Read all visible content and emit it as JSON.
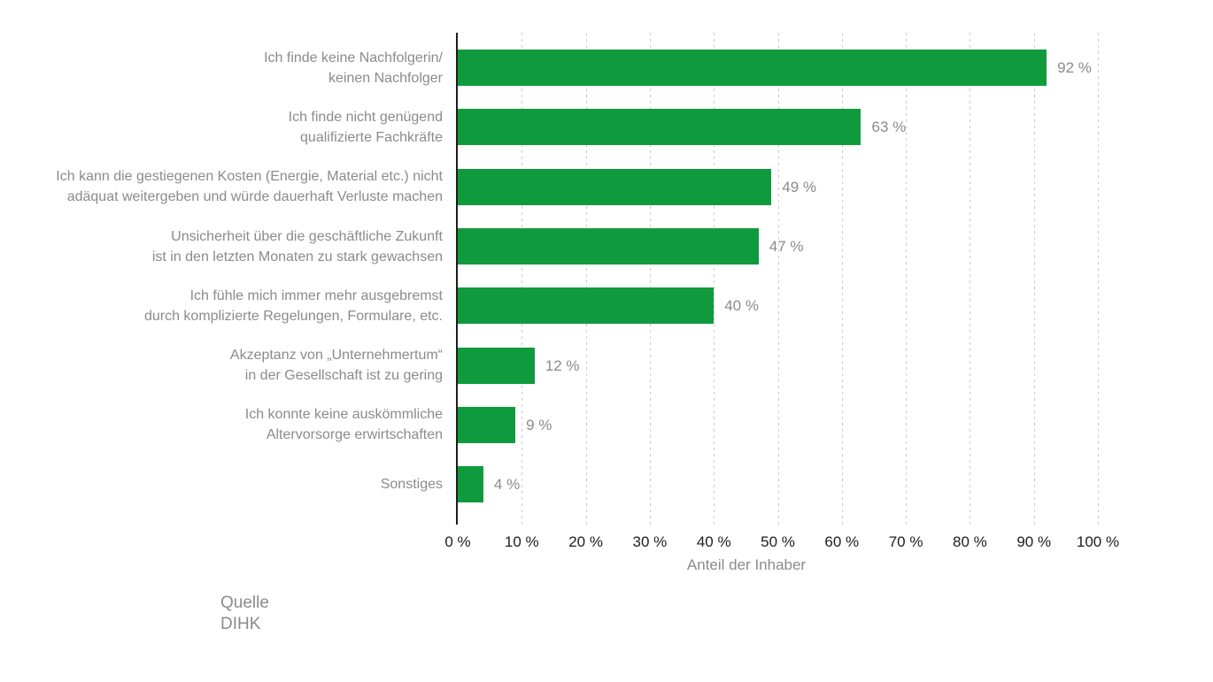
{
  "chart_data": {
    "type": "bar",
    "orientation": "horizontal",
    "categories": [
      "Ich finde keine Nachfolgerin/\nkeinen Nachfolger",
      "Ich finde nicht genügend\nqualifizierte Fachkräfte",
      "Ich kann die gestiegenen Kosten (Energie, Material etc.) nicht\nadäquat weitergeben und würde dauerhaft Verluste machen",
      "Unsicherheit über die geschäftliche Zukunft\nist in den letzten Monaten zu stark gewachsen",
      "Ich fühle mich immer mehr ausgebremst\ndurch komplizierte Regelungen, Formulare, etc.",
      "Akzeptanz von „Unternehmertum“\nin der Gesellschaft ist zu gering",
      "Ich konnte keine auskömmliche\nAltervorsorge erwirtschaften",
      "Sonstiges"
    ],
    "values": [
      92,
      63,
      49,
      47,
      40,
      12,
      9,
      4
    ],
    "value_labels": [
      "92 %",
      "63 %",
      "49 %",
      "47 %",
      "40 %",
      "12 %",
      "9 %",
      "4 %"
    ],
    "x_ticks": [
      "0 %",
      "10 %",
      "20 %",
      "30 %",
      "40 %",
      "50 %",
      "60 %",
      "70 %",
      "80 %",
      "90 %",
      "100 %"
    ],
    "xlabel": "Anteil der Inhaber",
    "xlim": [
      0,
      100
    ],
    "grid": "vertical-dashed",
    "legend": "none",
    "title": "",
    "bar_color": "#0f9b3d"
  },
  "source": {
    "label": "Quelle",
    "name": "DIHK"
  },
  "colors": {
    "bar": "#0f9b3d",
    "category_text": "#8b8b8b",
    "value_text": "#8b8b8b",
    "tick_text": "#1d1d1b",
    "axis_line": "#1d1d1b",
    "gridline": "#cbcbcb",
    "background": "#ffffff"
  }
}
